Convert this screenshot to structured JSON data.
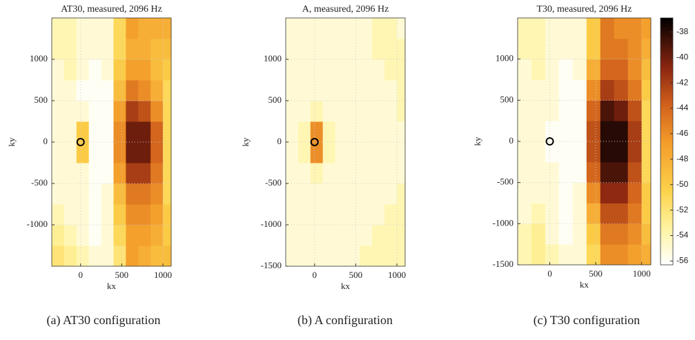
{
  "chart_data": [
    {
      "type": "heatmap",
      "title": "AT30, measured, 2096 Hz",
      "xlabel": "kx",
      "ylabel": "ky",
      "caption": "(a) AT30 configuration",
      "xlim": [
        -350,
        1100
      ],
      "ylim": [
        -1500,
        1500
      ],
      "xticks": [
        0,
        500,
        1000
      ],
      "yticks": [
        -1000,
        -500,
        0,
        500,
        1000
      ],
      "grid": true,
      "clim": [
        -56.3,
        -36.9
      ],
      "marker": {
        "x": 0,
        "y": 0
      },
      "x_edges": [
        -350,
        -200,
        -50,
        100,
        250,
        400,
        550,
        700,
        850,
        1000,
        1100
      ],
      "y_edges": [
        -1500,
        -1250,
        -1000,
        -750,
        -500,
        -250,
        0,
        250,
        500,
        750,
        1000,
        1250,
        1500
      ],
      "z": [
        [
          -52,
          -53,
          -54,
          -55,
          -55,
          -52,
          -47,
          -48,
          -49,
          -49
        ],
        [
          -53,
          -54,
          -55,
          -56,
          -55,
          -51,
          -47,
          -47,
          -48,
          -50
        ],
        [
          -54,
          -55,
          -55,
          -56,
          -55,
          -50,
          -46,
          -46,
          -47,
          -50
        ],
        [
          -55,
          -55,
          -55,
          -56,
          -55,
          -49,
          -45,
          -45,
          -46,
          -51
        ],
        [
          -55,
          -55,
          -55,
          -56,
          -56,
          -47,
          -42,
          -42,
          -45,
          -51
        ],
        [
          -55,
          -55,
          -50,
          -56,
          -56,
          -46,
          -40,
          -40,
          -44,
          -51
        ],
        [
          -55,
          -55,
          -50,
          -56,
          -56,
          -46,
          -40,
          -40,
          -44,
          -51
        ],
        [
          -55,
          -55,
          -55,
          -56,
          -56,
          -47,
          -42,
          -43,
          -46,
          -51
        ],
        [
          -55,
          -55,
          -56,
          -56,
          -56,
          -49,
          -45,
          -46,
          -48,
          -51
        ],
        [
          -55,
          -54,
          -55,
          -56,
          -55,
          -50,
          -47,
          -47,
          -49,
          -50
        ],
        [
          -54,
          -54,
          -55,
          -55,
          -55,
          -51,
          -48,
          -48,
          -49,
          -49
        ],
        [
          -54,
          -54,
          -55,
          -55,
          -55,
          -51,
          -47,
          -48,
          -48,
          -48
        ]
      ]
    },
    {
      "type": "heatmap",
      "title": "A, measured, 2096 Hz",
      "xlabel": "kx",
      "ylabel": "ky",
      "caption": "(b) A configuration",
      "xlim": [
        -350,
        1100
      ],
      "ylim": [
        -1500,
        1500
      ],
      "xticks": [
        0,
        500,
        1000
      ],
      "yticks": [
        -1500,
        -1000,
        -500,
        0,
        500,
        1000
      ],
      "grid": true,
      "clim": [
        -56.3,
        -36.9
      ],
      "marker": {
        "x": 0,
        "y": 0
      },
      "x_edges": [
        -350,
        -200,
        -50,
        100,
        250,
        400,
        550,
        700,
        850,
        1000,
        1100
      ],
      "y_edges": [
        -1500,
        -1250,
        -1000,
        -750,
        -500,
        -250,
        0,
        250,
        500,
        750,
        1000,
        1250,
        1500
      ],
      "z": [
        [
          -55,
          -55,
          -55,
          -55,
          -55,
          -55,
          -54,
          -54,
          -54,
          -54
        ],
        [
          -55,
          -55,
          -55,
          -55,
          -55,
          -55,
          -55,
          -54,
          -54,
          -54
        ],
        [
          -55,
          -55,
          -55,
          -55,
          -55,
          -55,
          -55,
          -55,
          -54,
          -54
        ],
        [
          -55,
          -55,
          -55,
          -55,
          -55,
          -55,
          -55,
          -55,
          -55,
          -54
        ],
        [
          -55,
          -55,
          -54,
          -55,
          -55,
          -55,
          -55,
          -55,
          -55,
          -55
        ],
        [
          -55,
          -54,
          -46,
          -54,
          -55,
          -55,
          -55,
          -55,
          -55,
          -55
        ],
        [
          -55,
          -54,
          -46,
          -54,
          -55,
          -55,
          -55,
          -55,
          -55,
          -55
        ],
        [
          -55,
          -55,
          -54,
          -55,
          -55,
          -55,
          -55,
          -55,
          -55,
          -54
        ],
        [
          -55,
          -55,
          -55,
          -55,
          -55,
          -55,
          -55,
          -55,
          -55,
          -54
        ],
        [
          -55,
          -55,
          -55,
          -55,
          -55,
          -55,
          -55,
          -55,
          -54,
          -54
        ],
        [
          -55,
          -55,
          -55,
          -55,
          -55,
          -55,
          -55,
          -54,
          -54,
          -54
        ],
        [
          -55,
          -55,
          -55,
          -55,
          -55,
          -55,
          -55,
          -54,
          -54,
          -55
        ]
      ]
    },
    {
      "type": "heatmap",
      "title": "T30, measured, 2096 Hz",
      "xlabel": "kx",
      "ylabel": "ky",
      "caption": "(c) T30 configuration",
      "xlim": [
        -350,
        1100
      ],
      "ylim": [
        -1500,
        1500
      ],
      "xticks": [
        0,
        500,
        1000
      ],
      "yticks": [
        -1500,
        -1000,
        -500,
        0,
        500,
        1000
      ],
      "grid": true,
      "clim": [
        -56.3,
        -36.9
      ],
      "marker": {
        "x": 0,
        "y": 0
      },
      "colorbar_ticks": [
        -56,
        -54,
        -52,
        -50,
        -48,
        -46,
        -44,
        -42,
        -40,
        -38
      ],
      "x_edges": [
        -350,
        -200,
        -50,
        100,
        250,
        400,
        550,
        700,
        850,
        1000,
        1100
      ],
      "y_edges": [
        -1500,
        -1250,
        -1000,
        -750,
        -500,
        -250,
        0,
        250,
        500,
        750,
        1000,
        1250,
        1500
      ],
      "z": [
        [
          -54,
          -53,
          -54,
          -55,
          -55,
          -51,
          -46,
          -46,
          -47,
          -48
        ],
        [
          -54,
          -53,
          -55,
          -56,
          -55,
          -50,
          -45,
          -45,
          -46,
          -49
        ],
        [
          -55,
          -54,
          -55,
          -56,
          -55,
          -48,
          -43,
          -43,
          -45,
          -50
        ],
        [
          -55,
          -55,
          -55,
          -56,
          -55,
          -46,
          -41,
          -41,
          -44,
          -50
        ],
        [
          -55,
          -55,
          -55,
          -56,
          -56,
          -44,
          -39,
          -39,
          -43,
          -51
        ],
        [
          -55,
          -55,
          -56,
          -56,
          -56,
          -43,
          -38,
          -38,
          -42,
          -51
        ],
        [
          -55,
          -55,
          -56,
          -56,
          -56,
          -43,
          -38,
          -38,
          -42,
          -51
        ],
        [
          -55,
          -55,
          -55,
          -56,
          -56,
          -44,
          -39,
          -40,
          -43,
          -51
        ],
        [
          -55,
          -55,
          -55,
          -56,
          -56,
          -46,
          -42,
          -43,
          -45,
          -50
        ],
        [
          -55,
          -54,
          -55,
          -56,
          -55,
          -48,
          -44,
          -44,
          -46,
          -49
        ],
        [
          -54,
          -54,
          -55,
          -55,
          -55,
          -50,
          -45,
          -45,
          -46,
          -48
        ],
        [
          -54,
          -54,
          -55,
          -55,
          -55,
          -50,
          -45,
          -46,
          -46,
          -47
        ]
      ]
    }
  ]
}
